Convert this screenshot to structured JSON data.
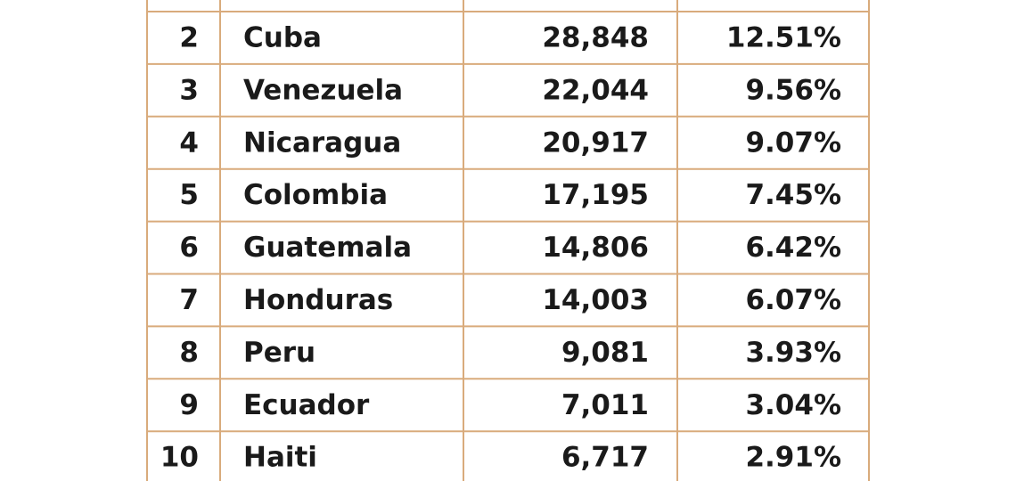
{
  "table": {
    "rows": [
      [
        "2",
        "Cuba",
        "28,848",
        "12.51%"
      ],
      [
        "3",
        "Venezuela",
        "22,044",
        "9.56%"
      ],
      [
        "4",
        "Nicaragua",
        "20,917",
        "9.07%"
      ],
      [
        "5",
        "Colombia",
        "17,195",
        "7.45%"
      ],
      [
        "6",
        "Guatemala",
        "14,806",
        "6.42%"
      ],
      [
        "7",
        "Honduras",
        "14,003",
        "6.07%"
      ],
      [
        "8",
        "Peru",
        "9,081",
        "3.93%"
      ],
      [
        "9",
        "Ecuador",
        "7,011",
        "3.04%"
      ],
      [
        "10",
        "Haiti",
        "6,717",
        "2.91%"
      ]
    ]
  }
}
